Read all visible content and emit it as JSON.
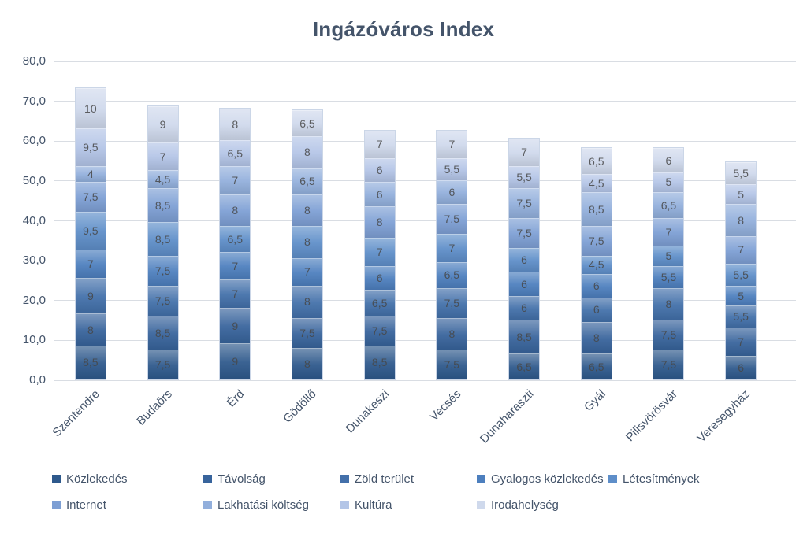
{
  "chart_data": {
    "type": "bar",
    "stacked": true,
    "title": "Ingázóváros Index",
    "decimal_separator": ",",
    "grid": "horizontal",
    "legend_position": "bottom",
    "ylim": [
      0,
      80
    ],
    "ytick_values": [
      0,
      10,
      20,
      30,
      40,
      50,
      60,
      70,
      80
    ],
    "ytick_labels": [
      "0,0",
      "10,0",
      "20,0",
      "30,0",
      "40,0",
      "50,0",
      "60,0",
      "70,0",
      "80,0"
    ],
    "categories": [
      "Szentendre",
      "Budaörs",
      "Érd",
      "Gödöllő",
      "Dunakeszi",
      "Vecsés",
      "Dunaharaszti",
      "Gyál",
      "Pilisvörösvár",
      "Veresegyház"
    ],
    "series": [
      {
        "name": "Közlekedés",
        "color": "#2e598c",
        "values": [
          8.5,
          7.5,
          9,
          8,
          8.5,
          7.5,
          6.5,
          6.5,
          7.5,
          6
        ]
      },
      {
        "name": "Távolság",
        "color": "#38649c",
        "values": [
          8,
          8.5,
          9,
          7.5,
          7.5,
          8,
          8.5,
          8,
          7.5,
          7
        ]
      },
      {
        "name": "Zöld terület",
        "color": "#4370aa",
        "values": [
          9,
          7.5,
          7,
          8,
          6.5,
          7.5,
          6,
          6,
          8,
          5.5
        ]
      },
      {
        "name": "Gyalogos közlekedés",
        "color": "#4d7fbe",
        "values": [
          7,
          7.5,
          7,
          7,
          6,
          6.5,
          6,
          6,
          5.5,
          5
        ]
      },
      {
        "name": "Létesítmények",
        "color": "#5e8ec9",
        "values": [
          9.5,
          8.5,
          6.5,
          8,
          7,
          7,
          6,
          4.5,
          5,
          5.5
        ]
      },
      {
        "name": "Internet",
        "color": "#7d9fd4",
        "values": [
          7.5,
          8.5,
          8,
          8,
          8,
          7.5,
          7.5,
          7.5,
          7,
          7
        ]
      },
      {
        "name": "Lakhatási költség",
        "color": "#92afdc",
        "values": [
          4,
          4.5,
          7,
          6.5,
          6,
          6,
          7.5,
          8.5,
          6.5,
          8
        ]
      },
      {
        "name": "Kultúra",
        "color": "#b3c5e7",
        "values": [
          9.5,
          7,
          6.5,
          8,
          6,
          5.5,
          5.5,
          4.5,
          5,
          5
        ]
      },
      {
        "name": "Irodahelység",
        "color": "#cfd9ec",
        "values": [
          10,
          9,
          8,
          6.5,
          7,
          7,
          7,
          6.5,
          6,
          5.5
        ]
      }
    ],
    "totals": [
      73,
      68.5,
      68,
      67.5,
      62.5,
      62.5,
      60.5,
      58,
      58,
      54.5
    ]
  },
  "colors": {
    "title_text": "#44546a",
    "axis_text": "#44546a",
    "value_label_text": "#474747",
    "gridline": "#d9dde3",
    "background": "#ffffff"
  }
}
